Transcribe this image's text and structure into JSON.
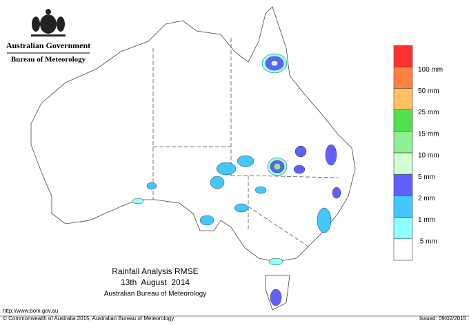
{
  "header": {
    "title": "Australian Government",
    "subtitle": "Bureau of Meteorology"
  },
  "map": {
    "title": "Rainfall Analysis RMSE",
    "date": "13th  August  2014",
    "source": "Australian Bureau of Meteorology"
  },
  "legend": {
    "colors": [
      "#ff3030",
      "#ff8040",
      "#ffc060",
      "#50e050",
      "#90f090",
      "#d0ffd0",
      "#6060ff",
      "#40c8ff",
      "#90ffff",
      "#ffffff"
    ],
    "labels": [
      "100 mm",
      "50 mm",
      "25 mm",
      "15 mm",
      "10 mm",
      "5 mm",
      "2 mm",
      "1 mm",
      ".5 mm"
    ]
  },
  "footer": {
    "url": "http://www.bom.gov.au",
    "copyright": "© Commonwealth of Australia 2015, Australian Bureau of Meteorology",
    "issued": "Issued: 09/02/2015"
  }
}
